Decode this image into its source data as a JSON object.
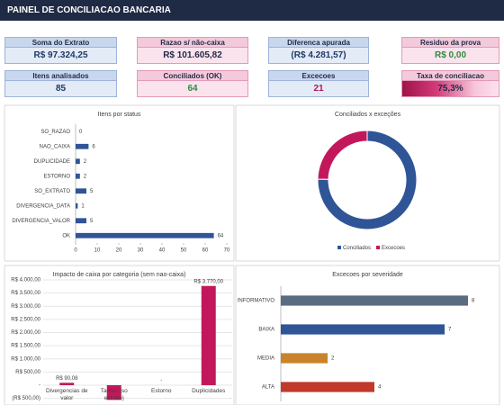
{
  "header": {
    "title": "PAINEL DE CONCILIACAO BANCARIA"
  },
  "kpis": [
    {
      "label": "Soma do Extrato",
      "value": "R$ 97.324,25"
    },
    {
      "label": "Razao s/ não-caixa",
      "value": "R$ 101.605,82"
    },
    {
      "label": "Diferenca apurada",
      "value": "(R$ 4.281,57)"
    },
    {
      "label": "Residuo da prova",
      "value": "R$ 0,00"
    },
    {
      "label": "Itens analisados",
      "value": "85"
    },
    {
      "label": "Conciliados (OK)",
      "value": "64"
    },
    {
      "label": "Excecoes",
      "value": "21"
    },
    {
      "label": "Taxa de conciliacao",
      "value": "75,3%"
    }
  ],
  "chart_data": [
    {
      "type": "hbar",
      "title": "Itens por status",
      "categories": [
        "SO_RAZAO",
        "NAO_CAIXA",
        "DUPLICIDADE",
        "ESTORNO",
        "SO_EXTRATO",
        "DIVERGENCIA_DATA",
        "DIVERGENCIA_VALOR",
        "OK"
      ],
      "values": [
        0,
        6,
        2,
        2,
        5,
        1,
        5,
        64
      ],
      "color": "#2f5597",
      "xlim": [
        0,
        70
      ],
      "xticks": [
        0,
        10,
        20,
        30,
        40,
        50,
        60,
        70
      ]
    },
    {
      "type": "donut",
      "title": "Conciliados x exceções",
      "categories": [
        "Conciliados",
        "Excecoes"
      ],
      "values": [
        64,
        21
      ],
      "colors": [
        "#2f5597",
        "#c2185b"
      ],
      "legend": "bottom"
    },
    {
      "type": "bar",
      "title": "Impacto de caixa por categoria (sem nao-caixa)",
      "categories": [
        "Divergencias de valor",
        "Tarifas (so extrato)",
        "Estorno",
        "Duplicidades"
      ],
      "values": [
        90.08,
        -560,
        0,
        3770
      ],
      "value_labels": [
        "R$ 90,08",
        null,
        "-",
        "R$ 3.770,00"
      ],
      "color": "#c2185b",
      "ylim": [
        -500,
        4000
      ],
      "yticks": [
        {
          "value": -500,
          "label": "(R$ 500,00)"
        },
        {
          "value": 0,
          "label": "-"
        },
        {
          "value": 500,
          "label": "R$ 500,00"
        },
        {
          "value": 1000,
          "label": "R$ 1.000,00"
        },
        {
          "value": 1500,
          "label": "R$ 1.500,00"
        },
        {
          "value": 2000,
          "label": "R$ 2.000,00"
        },
        {
          "value": 2500,
          "label": "R$ 2.500,00"
        },
        {
          "value": 3000,
          "label": "R$ 3.000,00"
        },
        {
          "value": 3500,
          "label": "R$ 3.500,00"
        },
        {
          "value": 4000,
          "label": "R$ 4.000,00"
        }
      ],
      "grid": true
    },
    {
      "type": "hbar",
      "title": "Excecoes por severidade",
      "categories": [
        "INFORMATIVO",
        "BAIXA",
        "MEDIA",
        "ALTA"
      ],
      "values": [
        8,
        7,
        2,
        4
      ],
      "colors": [
        "#5b6b80",
        "#2f5597",
        "#c9842b",
        "#c0392b"
      ],
      "xlim": [
        0,
        9
      ]
    }
  ]
}
